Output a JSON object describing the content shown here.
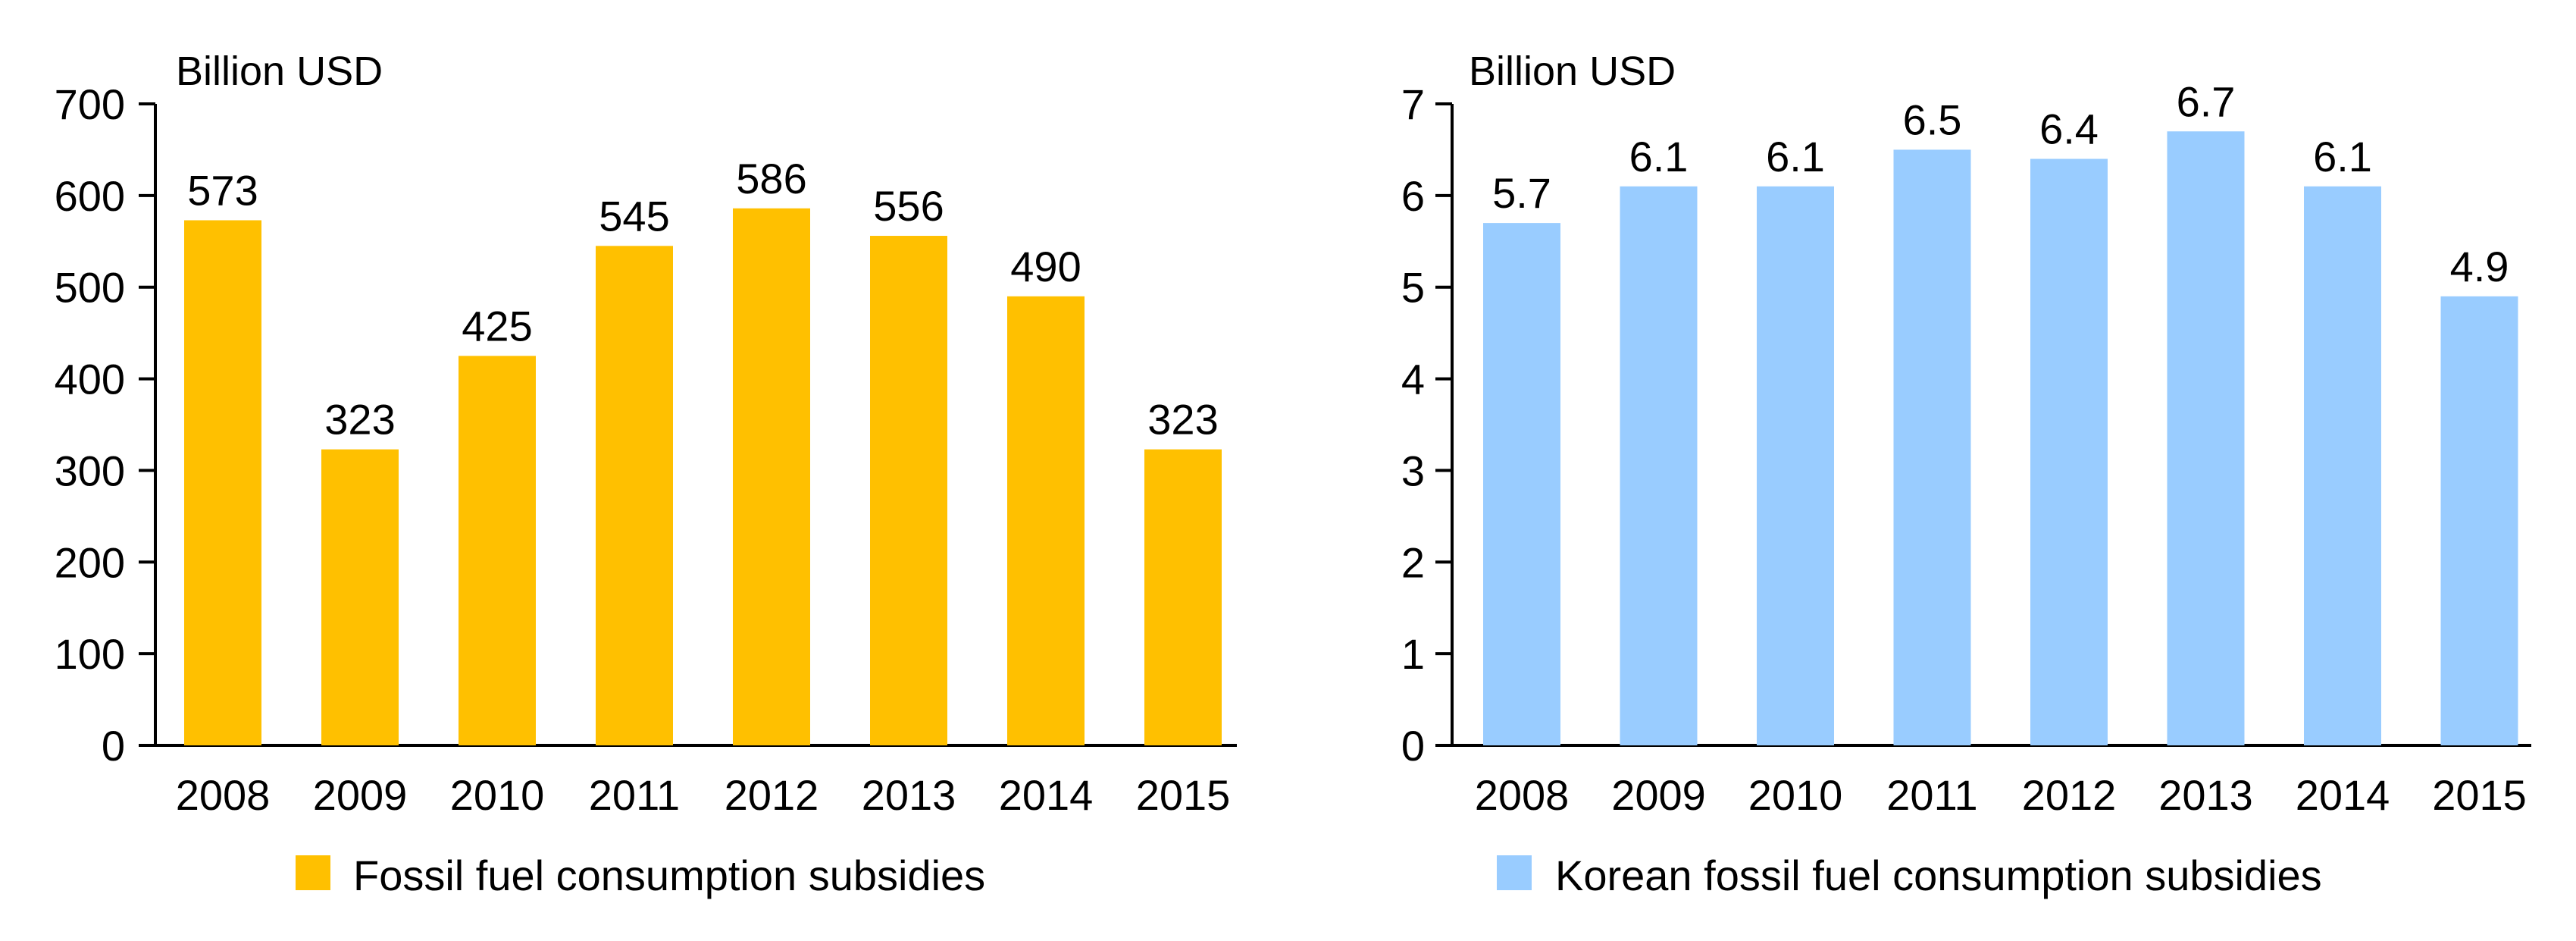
{
  "chart_data": [
    {
      "type": "bar",
      "unit_label": "Billion USD",
      "categories": [
        "2008",
        "2009",
        "2010",
        "2011",
        "2012",
        "2013",
        "2014",
        "2015"
      ],
      "series": [
        {
          "name": "Fossil fuel consumption subsidies",
          "values": [
            573,
            323,
            425,
            545,
            586,
            556,
            490,
            323
          ],
          "color": "#FFC000"
        }
      ],
      "ylim": [
        0,
        700
      ],
      "yticks": [
        0,
        100,
        200,
        300,
        400,
        500,
        600,
        700
      ],
      "data_labels": [
        "573",
        "323",
        "425",
        "545",
        "586",
        "556",
        "490",
        "323"
      ],
      "grid": false,
      "legend": "bottom"
    },
    {
      "type": "bar",
      "unit_label": "Billion USD",
      "categories": [
        "2008",
        "2009",
        "2010",
        "2011",
        "2012",
        "2013",
        "2014",
        "2015"
      ],
      "series": [
        {
          "name": "Korean fossil fuel consumption subsidies",
          "values": [
            5.7,
            6.1,
            6.1,
            6.5,
            6.4,
            6.7,
            6.1,
            4.9
          ],
          "color": "#99CCFF"
        }
      ],
      "ylim": [
        0,
        7
      ],
      "yticks": [
        0,
        1,
        2,
        3,
        4,
        5,
        6,
        7
      ],
      "data_labels": [
        "5.7",
        "6.1",
        "6.1",
        "6.5",
        "6.4",
        "6.7",
        "6.1",
        "4.9"
      ],
      "grid": false,
      "legend": "bottom"
    }
  ]
}
